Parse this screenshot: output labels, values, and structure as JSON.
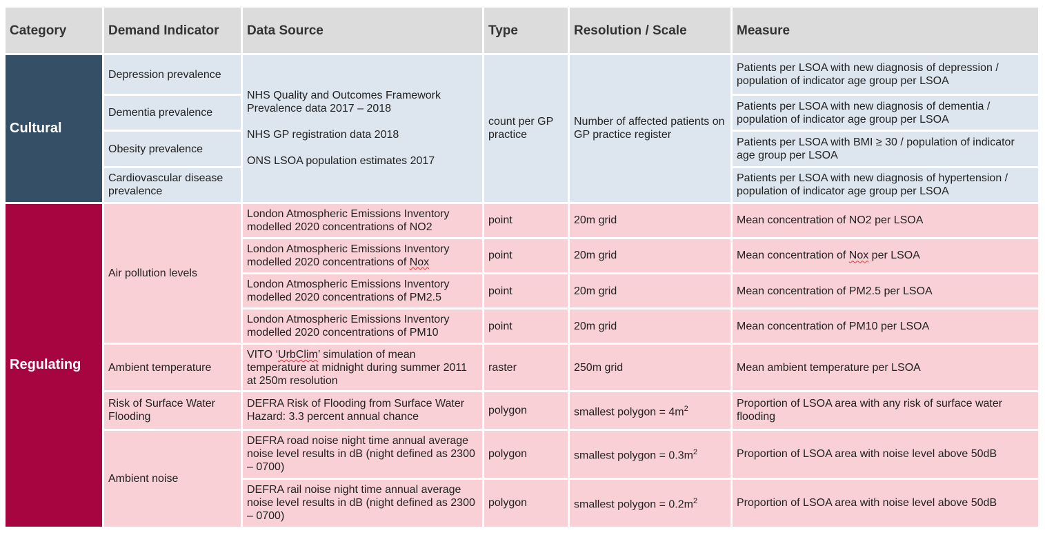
{
  "colors": {
    "cultural": "#355066",
    "cultural_cell": "#dde5ee",
    "regulating": "#a6053f",
    "regulating_cell": "#f8d0d5",
    "header": "#dcdcdc"
  },
  "header": {
    "category": "Category",
    "demand_indicator": "Demand Indicator",
    "data_source": "Data Source",
    "type": "Type",
    "resolution": "Resolution / Scale",
    "measure": "Measure"
  },
  "cultural": {
    "category": "Cultural",
    "indicators": [
      "Depression prevalence",
      "Dementia prevalence",
      "Obesity prevalence",
      "Cardiovascular disease prevalence"
    ],
    "data_source": [
      "NHS Quality and Outcomes Framework Prevalence data 2017 – 2018",
      "NHS GP registration data 2018",
      "ONS LSOA population estimates 2017"
    ],
    "type": "count per GP practice",
    "resolution": "Number of affected patients on GP practice register",
    "measures": [
      "Patients per LSOA with new diagnosis of depression / population of indicator age group per LSOA",
      "Patients per LSOA with new diagnosis of dementia / population of indicator age group per LSOA",
      "Patients per LSOA with BMI ≥ 30 / population of indicator age group per LSOA",
      "Patients per LSOA with new diagnosis of hypertension / population of indicator age group per LSOA"
    ]
  },
  "regulating": {
    "category": "Regulating",
    "air_pollution": {
      "indicator": "Air pollution levels",
      "rows": [
        {
          "source_a": "London Atmospheric Emissions Inventory modelled 2020 concentrations of ",
          "source_b": "NO2",
          "type": "point",
          "resolution": "20m grid",
          "measure_a": "Mean concentration of ",
          "measure_b": "NO2",
          "measure_c": " per LSOA"
        },
        {
          "source_a": "London Atmospheric Emissions Inventory modelled 2020 concentrations of ",
          "source_b": "Nox",
          "type": "point",
          "resolution": "20m grid",
          "measure_a": "Mean concentration of ",
          "measure_b": "Nox",
          "measure_c": " per LSOA"
        },
        {
          "source_a": "London Atmospheric Emissions Inventory modelled 2020 concentrations of ",
          "source_b": "PM2.5",
          "type": "point",
          "resolution": "20m grid",
          "measure_a": "Mean concentration of ",
          "measure_b": "PM2.5",
          "measure_c": " per LSOA"
        },
        {
          "source_a": "London Atmospheric Emissions Inventory modelled 2020 concentrations of ",
          "source_b": "PM10",
          "type": "point",
          "resolution": "20m grid",
          "measure_a": "Mean concentration of ",
          "measure_b": "PM10",
          "measure_c": " per LSOA"
        }
      ]
    },
    "temperature": {
      "indicator": "Ambient temperature",
      "source_a": "VITO ‘",
      "source_b": "UrbClim",
      "source_c": "’ simulation of mean temperature at midnight during summer 2011 at 250m resolution",
      "type": "raster",
      "resolution": "250m grid",
      "measure": "Mean ambient temperature per LSOA"
    },
    "flooding": {
      "indicator": "Risk of Surface Water Flooding",
      "source": "DEFRA Risk of Flooding from Surface Water Hazard: 3.3 percent annual chance",
      "type": "polygon",
      "resolution_a": "smallest polygon = 4m",
      "resolution_sup": "2",
      "measure": "Proportion of LSOA area with any risk of surface water flooding"
    },
    "noise": {
      "indicator": "Ambient noise",
      "rows": [
        {
          "source": "DEFRA road noise night time annual average noise level results in dB (night defined as 2300 – 0700)",
          "type": "polygon",
          "resolution_a": "smallest polygon = 0.3m",
          "resolution_sup": "2",
          "measure": "Proportion of LSOA area with noise level above 50dB"
        },
        {
          "source": "DEFRA rail noise night time annual average noise level results in dB (night defined as 2300 – 0700)",
          "type": "polygon",
          "resolution_a": "smallest polygon = 0.2m",
          "resolution_sup": "2",
          "measure": "Proportion of LSOA area with noise level above 50dB"
        }
      ]
    }
  }
}
